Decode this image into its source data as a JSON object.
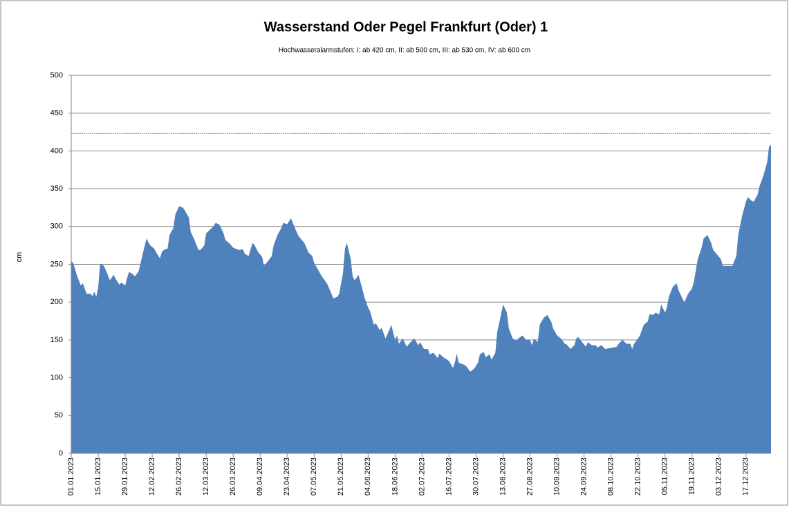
{
  "chart_data": {
    "type": "area",
    "title": "Wasserstand Oder Pegel Frankfurt (Oder) 1",
    "subtitle": "Hochwasseralarmstufen: I: ab 420 cm, II: ab 500 cm, III: ab 530 cm,  IV: ab 600 cm",
    "y_label": "cm",
    "color": "#4f81bd",
    "threshold": 423,
    "threshold_color": "#e03c31",
    "grid": true,
    "ylim": [
      0,
      500
    ],
    "yticks": [
      0,
      50,
      100,
      150,
      200,
      250,
      300,
      350,
      400,
      450,
      500
    ],
    "xlim": [
      "01.01.2023",
      "30.12.2023"
    ],
    "xticks": [
      "01.01.2023",
      "15.01.2023",
      "29.01.2023",
      "12.02.2023",
      "26.02.2023",
      "12.03.2023",
      "26.03.2023",
      "09.04.2023",
      "23.04.2023",
      "07.05.2023",
      "21.05.2023",
      "04.06.2023",
      "18.06.2023",
      "02.07.2023",
      "16.07.2023",
      "30.07.2023",
      "13.08.2023",
      "27.08.2023",
      "10.09.2023",
      "24.09.2023",
      "08.10.2023",
      "22.10.2023",
      "05.11.2023",
      "19.11.2023",
      "03.12.2023",
      "17.12.2023"
    ],
    "x": [
      "01.01.2023",
      "02.01.2023",
      "04.01.2023",
      "06.01.2023",
      "07.01.2023",
      "09.01.2023",
      "11.01.2023",
      "12.01.2023",
      "13.01.2023",
      "14.01.2023",
      "15.01.2023",
      "16.01.2023",
      "18.01.2023",
      "20.01.2023",
      "21.01.2023",
      "23.01.2023",
      "24.01.2023",
      "26.01.2023",
      "27.01.2023",
      "29.01.2023",
      "30.01.2023",
      "31.01.2023",
      "02.02.2023",
      "03.02.2023",
      "05.02.2023",
      "07.02.2023",
      "08.02.2023",
      "09.02.2023",
      "11.02.2023",
      "13.02.2023",
      "14.02.2023",
      "16.02.2023",
      "17.02.2023",
      "18.02.2023",
      "20.02.2023",
      "21.02.2023",
      "23.02.2023",
      "24.02.2023",
      "26.02.2023",
      "28.02.2023",
      "01.03.2023",
      "03.03.2023",
      "04.03.2023",
      "06.03.2023",
      "08.03.2023",
      "09.03.2023",
      "11.03.2023",
      "12.03.2023",
      "14.03.2023",
      "15.03.2023",
      "17.03.2023",
      "19.03.2023",
      "21.03.2023",
      "22.03.2023",
      "24.03.2023",
      "26.03.2023",
      "27.03.2023",
      "29.03.2023",
      "31.03.2023",
      "01.04.2023",
      "03.04.2023",
      "05.04.2023",
      "06.04.2023",
      "08.04.2023",
      "10.04.2023",
      "11.04.2023",
      "13.04.2023",
      "15.04.2023",
      "16.04.2023",
      "18.04.2023",
      "20.04.2023",
      "21.04.2023",
      "23.04.2023",
      "25.04.2023",
      "27.04.2023",
      "29.04.2023",
      "30.04.2023",
      "02.05.2023",
      "04.05.2023",
      "06.05.2023",
      "07.05.2023",
      "09.05.2023",
      "11.05.2023",
      "13.05.2023",
      "14.05.2023",
      "16.05.2023",
      "17.05.2023",
      "19.05.2023",
      "20.05.2023",
      "22.05.2023",
      "23.05.2023",
      "24.05.2023",
      "26.05.2023",
      "27.05.2023",
      "28.05.2023",
      "30.05.2023",
      "01.06.2023",
      "02.06.2023",
      "04.06.2023",
      "05.06.2023",
      "07.06.2023",
      "08.06.2023",
      "10.06.2023",
      "11.06.2023",
      "13.06.2023",
      "15.06.2023",
      "16.06.2023",
      "18.06.2023",
      "19.06.2023",
      "20.06.2023",
      "22.06.2023",
      "24.06.2023",
      "26.06.2023",
      "28.06.2023",
      "30.06.2023",
      "01.07.2023",
      "03.07.2023",
      "05.07.2023",
      "06.07.2023",
      "08.07.2023",
      "10.07.2023",
      "11.07.2023",
      "13.07.2023",
      "15.07.2023",
      "16.07.2023",
      "18.07.2023",
      "19.07.2023",
      "20.07.2023",
      "21.07.2023",
      "24.07.2023",
      "25.07.2023",
      "27.07.2023",
      "29.07.2023",
      "31.07.2023",
      "01.08.2023",
      "03.08.2023",
      "04.08.2023",
      "06.08.2023",
      "07.08.2023",
      "09.08.2023",
      "10.08.2023",
      "12.08.2023",
      "13.08.2023",
      "15.08.2023",
      "16.08.2023",
      "18.08.2023",
      "20.08.2023",
      "21.08.2023",
      "23.08.2023",
      "25.08.2023",
      "27.08.2023",
      "28.08.2023",
      "29.08.2023",
      "31.08.2023",
      "01.09.2023",
      "03.09.2023",
      "05.09.2023",
      "07.09.2023",
      "08.09.2023",
      "10.09.2023",
      "12.09.2023",
      "14.09.2023",
      "15.09.2023",
      "17.09.2023",
      "19.09.2023",
      "20.09.2023",
      "21.09.2023",
      "23.09.2023",
      "25.09.2023",
      "26.09.2023",
      "28.09.2023",
      "30.09.2023",
      "01.10.2023",
      "03.10.2023",
      "05.10.2023",
      "07.10.2023",
      "09.10.2023",
      "11.10.2023",
      "12.10.2023",
      "14.10.2023",
      "16.10.2023",
      "18.10.2023",
      "19.10.2023",
      "20.10.2023",
      "22.10.2023",
      "23.10.2023",
      "25.10.2023",
      "27.10.2023",
      "28.10.2023",
      "30.10.2023",
      "31.10.2023",
      "02.11.2023",
      "03.11.2023",
      "05.11.2023",
      "06.11.2023",
      "07.11.2023",
      "09.11.2023",
      "11.11.2023",
      "12.11.2023",
      "14.11.2023",
      "15.11.2023",
      "17.11.2023",
      "19.11.2023",
      "20.11.2023",
      "22.11.2023",
      "24.11.2023",
      "25.11.2023",
      "27.11.2023",
      "29.11.2023",
      "30.11.2023",
      "02.12.2023",
      "04.12.2023",
      "05.12.2023",
      "07.12.2023",
      "09.12.2023",
      "10.12.2023",
      "12.12.2023",
      "13.12.2023",
      "15.12.2023",
      "17.12.2023",
      "18.12.2023",
      "20.12.2023",
      "21.12.2023",
      "23.12.2023",
      "24.12.2023",
      "26.12.2023",
      "28.12.2023",
      "29.12.2023",
      "30.12.2023"
    ],
    "values": [
      254,
      252,
      235,
      222,
      225,
      211,
      211,
      208,
      214,
      207,
      220,
      251,
      248,
      236,
      229,
      236,
      231,
      223,
      226,
      222,
      232,
      240,
      237,
      234,
      241,
      263,
      273,
      284,
      275,
      271,
      266,
      258,
      266,
      269,
      271,
      289,
      298,
      316,
      327,
      325,
      321,
      312,
      293,
      282,
      269,
      269,
      275,
      291,
      296,
      298,
      305,
      302,
      291,
      282,
      278,
      272,
      271,
      269,
      270,
      264,
      261,
      278,
      276,
      266,
      260,
      248,
      254,
      261,
      275,
      289,
      298,
      305,
      303,
      311,
      298,
      287,
      284,
      278,
      266,
      261,
      252,
      243,
      234,
      227,
      223,
      211,
      205,
      207,
      211,
      239,
      271,
      278,
      257,
      234,
      229,
      236,
      218,
      207,
      193,
      188,
      170,
      172,
      163,
      166,
      152,
      163,
      170,
      150,
      156,
      145,
      152,
      141,
      147,
      152,
      143,
      147,
      138,
      138,
      131,
      133,
      126,
      132,
      127,
      124,
      122,
      113,
      120,
      132,
      120,
      117,
      115,
      108,
      112,
      120,
      131,
      134,
      127,
      131,
      124,
      133,
      161,
      184,
      197,
      186,
      165,
      152,
      149,
      152,
      156,
      150,
      150,
      143,
      152,
      147,
      170,
      179,
      183,
      174,
      165,
      156,
      152,
      145,
      144,
      138,
      143,
      152,
      154,
      147,
      141,
      147,
      143,
      143,
      140,
      143,
      138,
      139,
      140,
      141,
      145,
      150,
      145,
      145,
      138,
      145,
      152,
      156,
      170,
      174,
      184,
      183,
      186,
      184,
      197,
      186,
      193,
      207,
      220,
      225,
      216,
      205,
      200,
      211,
      218,
      227,
      257,
      272,
      284,
      289,
      278,
      269,
      263,
      257,
      248,
      248,
      248,
      248,
      261,
      289,
      314,
      333,
      339,
      334,
      333,
      342,
      353,
      367,
      385,
      406,
      408
    ]
  }
}
